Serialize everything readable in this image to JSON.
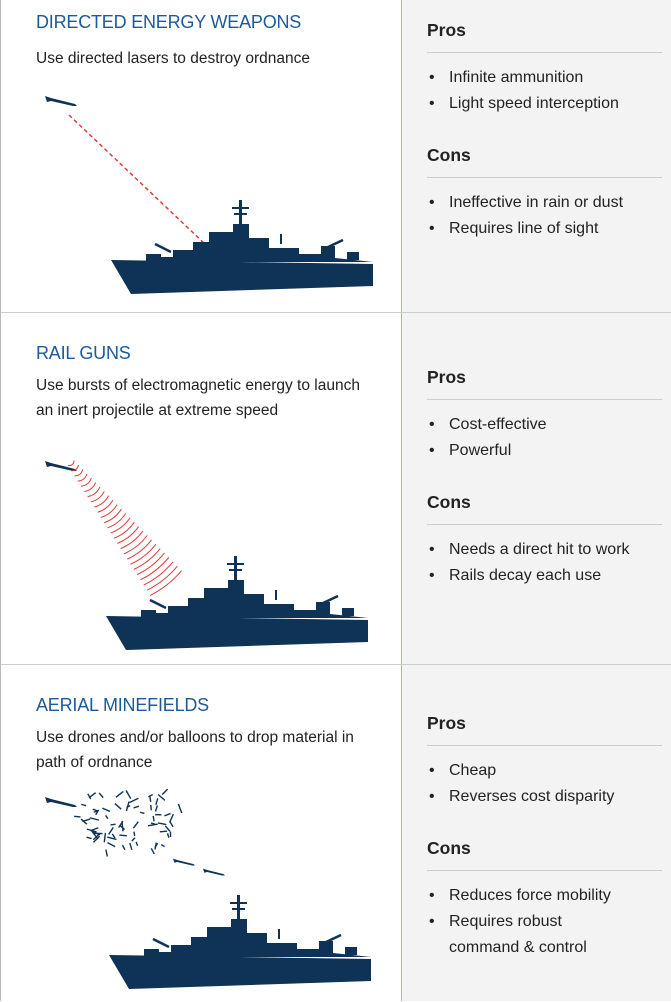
{
  "sections": [
    {
      "title": "DIRECTED ENERGY WEAPONS",
      "description": "Use directed lasers to destroy ordnance",
      "pros_heading": "Pros",
      "pros": [
        "Infinite ammunition",
        "Light speed interception"
      ],
      "cons_heading": "Cons",
      "cons": [
        "Ineffective in rain or dust",
        "Requires line of sight"
      ]
    },
    {
      "title": "RAIL GUNS",
      "description": "Use bursts of electromagnetic energy to launch an inert projectile at extreme speed",
      "pros_heading": "Pros",
      "pros": [
        "Cost-effective",
        "Powerful"
      ],
      "cons_heading": "Cons",
      "cons": [
        "Needs a direct hit to work",
        "Rails decay each use"
      ]
    },
    {
      "title": "AERIAL MINEFIELDS",
      "description": "Use drones and/or balloons to drop material in path of ordnance",
      "pros_heading": "Pros",
      "pros": [
        "Cheap",
        "Reverses cost disparity"
      ],
      "cons_heading": "Cons",
      "cons": [
        "Reduces force mobility",
        "Requires robust command & control"
      ]
    }
  ]
}
